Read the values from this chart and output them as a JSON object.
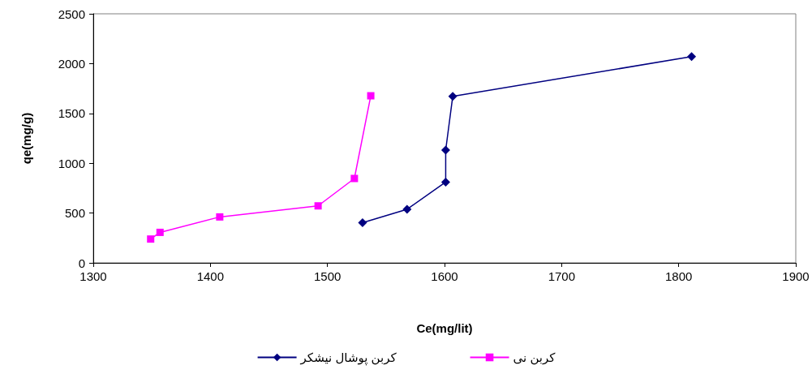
{
  "chart_data": {
    "type": "line",
    "xlabel": "Ce(mg/lit)",
    "ylabel": "qe(mg/g)",
    "xlim": [
      1300,
      1900
    ],
    "xticks": [
      1300,
      1400,
      1500,
      1600,
      1700,
      1800,
      1900
    ],
    "ylim": [
      0,
      2500
    ],
    "yticks": [
      0,
      500,
      1000,
      1500,
      2000,
      2500
    ],
    "series": [
      {
        "name": "کربن پوشال نیشکر",
        "color": "#000080",
        "marker": "diamond",
        "x": [
          1530,
          1568,
          1601,
          1601,
          1607,
          1811
        ],
        "values": [
          403,
          538,
          811,
          1132,
          1671,
          2070
        ]
      },
      {
        "name": "کربن نی",
        "color": "#ff00ff",
        "marker": "square",
        "x": [
          1349,
          1357,
          1408,
          1492,
          1523,
          1537
        ],
        "values": [
          239,
          306,
          461,
          572,
          847,
          1677
        ]
      }
    ],
    "grid": false,
    "legend": "bottom",
    "line_style": "solid"
  }
}
